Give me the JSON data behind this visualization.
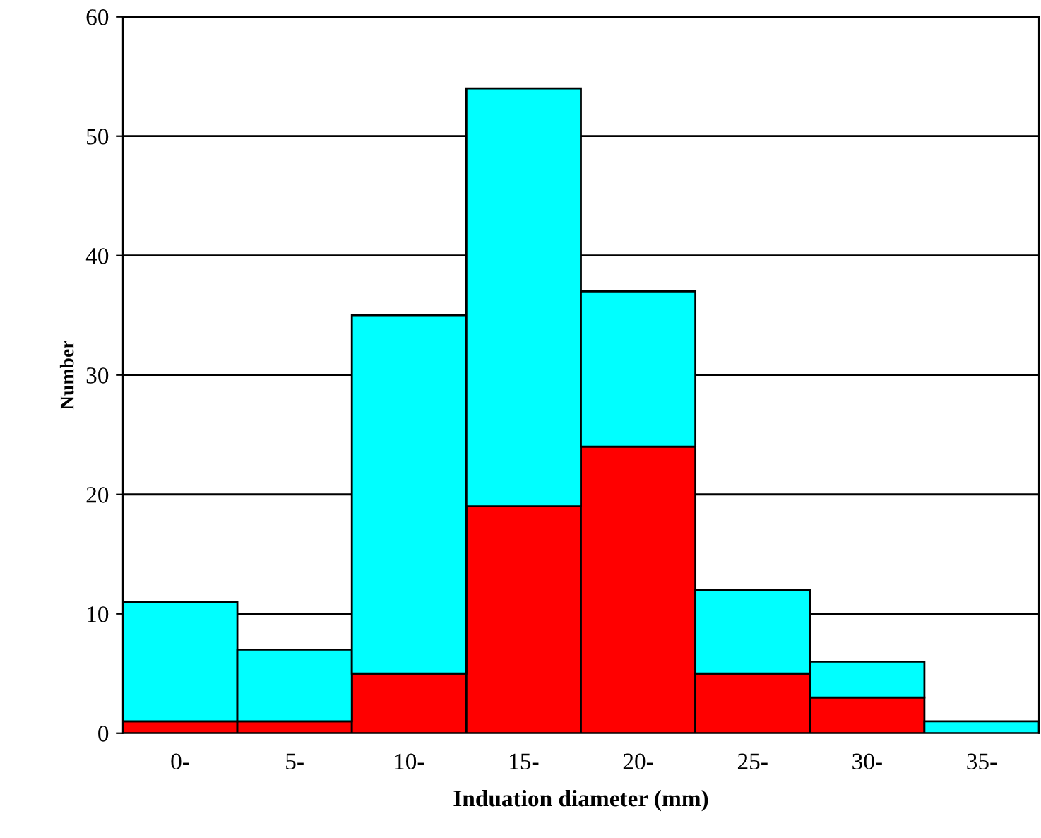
{
  "chart_data": {
    "type": "bar",
    "stacked": true,
    "xlabel": "Induation diameter (mm)",
    "ylabel": "Number",
    "categories": [
      "0-",
      "5-",
      "10-",
      "15-",
      "20-",
      "25-",
      "30-",
      "35-"
    ],
    "series": [
      {
        "color": "#ff0000",
        "values": [
          1,
          1,
          5,
          19,
          24,
          5,
          3,
          0
        ]
      },
      {
        "color": "#00ffff",
        "values": [
          10,
          6,
          30,
          35,
          13,
          7,
          3,
          1
        ]
      }
    ],
    "ylim": [
      0,
      60
    ],
    "yticks": [
      0,
      10,
      20,
      30,
      40,
      50,
      60
    ],
    "grid": "y"
  }
}
